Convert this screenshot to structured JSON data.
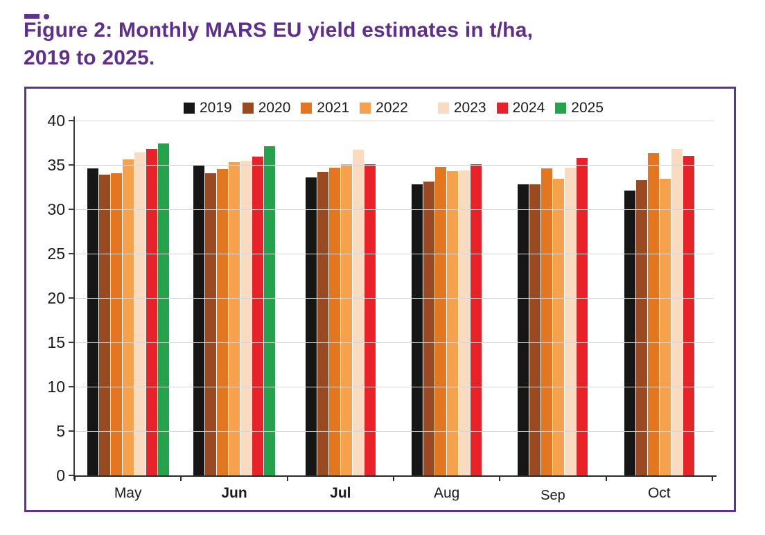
{
  "page": {
    "title_line1": "Figure 2: Monthly MARS EU yield estimates in t/ha,",
    "title_line2": "2019 to 2025.",
    "title_color": "#5e2f8d",
    "box_border_color": "#5b32a4"
  },
  "chart_data": {
    "type": "bar",
    "title": "Monthly MARS EU yield estimates in t/ha, 2019 to 2025",
    "xlabel": "",
    "ylabel": "",
    "unit": "t/ha",
    "categories": [
      "May",
      "Jun",
      "Jul",
      "Aug",
      "Sep",
      "Oct"
    ],
    "series": [
      {
        "name": "2019",
        "color": "#161616",
        "values": [
          34.6,
          34.9,
          33.6,
          32.8,
          32.8,
          32.1
        ]
      },
      {
        "name": "2020",
        "color": "#9a4a20",
        "values": [
          33.9,
          34.1,
          34.2,
          33.1,
          32.8,
          33.3
        ]
      },
      {
        "name": "2021",
        "color": "#e4761f",
        "values": [
          34.1,
          34.5,
          34.7,
          34.8,
          34.6,
          36.3
        ]
      },
      {
        "name": "2022",
        "color": "#f6a24c",
        "values": [
          35.6,
          35.3,
          35.1,
          34.3,
          33.4,
          33.4
        ]
      },
      {
        "name": "2023",
        "color": "#f9dcc0",
        "values": [
          36.4,
          35.5,
          36.7,
          34.4,
          34.7,
          36.8
        ]
      },
      {
        "name": "2024",
        "color": "#e92128",
        "values": [
          36.8,
          35.9,
          35.1,
          35.1,
          35.8,
          36.0
        ]
      },
      {
        "name": "2025",
        "color": "#24a34c",
        "values": [
          37.4,
          37.1,
          null,
          null,
          null,
          null
        ]
      }
    ],
    "ylim": [
      0,
      40
    ],
    "yticks": [
      0,
      5,
      10,
      15,
      20,
      25,
      30,
      35,
      40
    ],
    "grid": true,
    "legend_position": "top"
  }
}
